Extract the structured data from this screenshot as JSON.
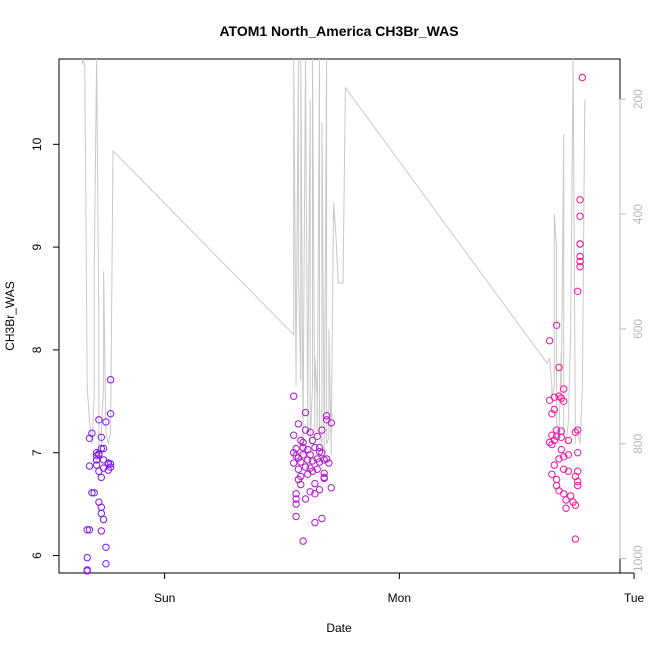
{
  "chart_data": {
    "type": "scatter",
    "title": "ATOM1 North_America CH3Br_WAS",
    "xlabel": "Date",
    "ylabel": "CH3Br_WAS",
    "x_ticks": [
      "Sun",
      "Mon",
      "Tue"
    ],
    "y_ticks": [
      "6",
      "7",
      "8",
      "9",
      "10"
    ],
    "y2_ticks": [
      "200",
      "400",
      "600",
      "800",
      "1000"
    ],
    "ylim": [
      5.83,
      10.83
    ],
    "y2lim": [
      1025,
      130
    ],
    "xlim": [
      -0.45,
      1.94
    ],
    "y2_reversed": true,
    "grid": false,
    "colors": {
      "start": "#7a17f2",
      "end": "#f2149f",
      "line": "#c8c8c8",
      "axis": "#000000",
      "right_axis": "#b8b8b8"
    },
    "points": [
      {
        "x": -0.33,
        "y": 5.98
      },
      {
        "x": -0.33,
        "y": 5.86
      },
      {
        "x": -0.33,
        "y": 5.85
      },
      {
        "x": -0.33,
        "y": 6.25
      },
      {
        "x": -0.32,
        "y": 6.25
      },
      {
        "x": -0.32,
        "y": 6.87
      },
      {
        "x": -0.32,
        "y": 7.14
      },
      {
        "x": -0.31,
        "y": 7.19
      },
      {
        "x": -0.31,
        "y": 6.61
      },
      {
        "x": -0.3,
        "y": 6.61
      },
      {
        "x": -0.29,
        "y": 6.97
      },
      {
        "x": -0.29,
        "y": 6.93
      },
      {
        "x": -0.29,
        "y": 6.88
      },
      {
        "x": -0.29,
        "y": 7.0
      },
      {
        "x": -0.28,
        "y": 6.99
      },
      {
        "x": -0.28,
        "y": 7.32
      },
      {
        "x": -0.28,
        "y": 6.52
      },
      {
        "x": -0.28,
        "y": 6.82
      },
      {
        "x": -0.28,
        "y": 6.98
      },
      {
        "x": -0.27,
        "y": 7.04
      },
      {
        "x": -0.27,
        "y": 6.47
      },
      {
        "x": -0.27,
        "y": 6.41
      },
      {
        "x": -0.27,
        "y": 6.24
      },
      {
        "x": -0.27,
        "y": 7.15
      },
      {
        "x": -0.27,
        "y": 6.76
      },
      {
        "x": -0.26,
        "y": 6.35
      },
      {
        "x": -0.26,
        "y": 6.93
      },
      {
        "x": -0.26,
        "y": 6.85
      },
      {
        "x": -0.26,
        "y": 7.04
      },
      {
        "x": -0.25,
        "y": 7.3
      },
      {
        "x": -0.25,
        "y": 5.92
      },
      {
        "x": -0.25,
        "y": 6.08
      },
      {
        "x": -0.24,
        "y": 6.89
      },
      {
        "x": -0.24,
        "y": 6.9
      },
      {
        "x": -0.24,
        "y": 6.83
      },
      {
        "x": -0.23,
        "y": 6.86
      },
      {
        "x": -0.23,
        "y": 7.71
      },
      {
        "x": -0.23,
        "y": 7.38
      },
      {
        "x": -0.23,
        "y": 6.89
      },
      {
        "x": 0.55,
        "y": 7.55
      },
      {
        "x": 0.55,
        "y": 7.17
      },
      {
        "x": 0.55,
        "y": 7.0
      },
      {
        "x": 0.55,
        "y": 6.9
      },
      {
        "x": 0.56,
        "y": 6.97
      },
      {
        "x": 0.56,
        "y": 7.04
      },
      {
        "x": 0.56,
        "y": 6.6
      },
      {
        "x": 0.56,
        "y": 6.55
      },
      {
        "x": 0.56,
        "y": 6.38
      },
      {
        "x": 0.56,
        "y": 6.5
      },
      {
        "x": 0.57,
        "y": 6.74
      },
      {
        "x": 0.57,
        "y": 6.84
      },
      {
        "x": 0.57,
        "y": 6.95
      },
      {
        "x": 0.57,
        "y": 7.28
      },
      {
        "x": 0.58,
        "y": 7.12
      },
      {
        "x": 0.58,
        "y": 6.91
      },
      {
        "x": 0.58,
        "y": 6.69
      },
      {
        "x": 0.58,
        "y": 6.77
      },
      {
        "x": 0.59,
        "y": 7.1
      },
      {
        "x": 0.59,
        "y": 7.05
      },
      {
        "x": 0.59,
        "y": 6.98
      },
      {
        "x": 0.59,
        "y": 6.14
      },
      {
        "x": 0.6,
        "y": 7.39
      },
      {
        "x": 0.6,
        "y": 7.22
      },
      {
        "x": 0.6,
        "y": 6.86
      },
      {
        "x": 0.6,
        "y": 6.55
      },
      {
        "x": 0.61,
        "y": 7.03
      },
      {
        "x": 0.61,
        "y": 6.93
      },
      {
        "x": 0.61,
        "y": 6.79
      },
      {
        "x": 0.62,
        "y": 7.2
      },
      {
        "x": 0.62,
        "y": 6.98
      },
      {
        "x": 0.62,
        "y": 6.85
      },
      {
        "x": 0.62,
        "y": 6.62
      },
      {
        "x": 0.63,
        "y": 7.12
      },
      {
        "x": 0.63,
        "y": 6.92
      },
      {
        "x": 0.63,
        "y": 6.82
      },
      {
        "x": 0.64,
        "y": 7.05
      },
      {
        "x": 0.64,
        "y": 6.7
      },
      {
        "x": 0.64,
        "y": 6.6
      },
      {
        "x": 0.64,
        "y": 6.32
      },
      {
        "x": 0.65,
        "y": 7.16
      },
      {
        "x": 0.65,
        "y": 6.94
      },
      {
        "x": 0.65,
        "y": 6.84
      },
      {
        "x": 0.66,
        "y": 7.05
      },
      {
        "x": 0.66,
        "y": 6.91
      },
      {
        "x": 0.66,
        "y": 7.01
      },
      {
        "x": 0.66,
        "y": 6.64
      },
      {
        "x": 0.67,
        "y": 6.36
      },
      {
        "x": 0.67,
        "y": 7.22
      },
      {
        "x": 0.67,
        "y": 7.0
      },
      {
        "x": 0.68,
        "y": 6.93
      },
      {
        "x": 0.68,
        "y": 6.76
      },
      {
        "x": 0.68,
        "y": 6.75
      },
      {
        "x": 0.68,
        "y": 6.8
      },
      {
        "x": 0.69,
        "y": 7.36
      },
      {
        "x": 0.69,
        "y": 7.32
      },
      {
        "x": 0.69,
        "y": 6.94
      },
      {
        "x": 0.7,
        "y": 6.9
      },
      {
        "x": 0.71,
        "y": 7.29
      },
      {
        "x": 0.71,
        "y": 6.66
      },
      {
        "x": 1.64,
        "y": 7.1
      },
      {
        "x": 1.64,
        "y": 8.09
      },
      {
        "x": 1.64,
        "y": 7.51
      },
      {
        "x": 1.65,
        "y": 7.38
      },
      {
        "x": 1.65,
        "y": 7.17
      },
      {
        "x": 1.65,
        "y": 7.08
      },
      {
        "x": 1.65,
        "y": 6.79
      },
      {
        "x": 1.66,
        "y": 7.54
      },
      {
        "x": 1.66,
        "y": 7.42
      },
      {
        "x": 1.66,
        "y": 7.12
      },
      {
        "x": 1.66,
        "y": 6.88
      },
      {
        "x": 1.67,
        "y": 8.24
      },
      {
        "x": 1.67,
        "y": 7.22
      },
      {
        "x": 1.67,
        "y": 7.16
      },
      {
        "x": 1.67,
        "y": 6.68
      },
      {
        "x": 1.67,
        "y": 6.74
      },
      {
        "x": 1.68,
        "y": 7.83
      },
      {
        "x": 1.68,
        "y": 7.55
      },
      {
        "x": 1.68,
        "y": 6.94
      },
      {
        "x": 1.68,
        "y": 6.63
      },
      {
        "x": 1.69,
        "y": 7.53
      },
      {
        "x": 1.69,
        "y": 7.21
      },
      {
        "x": 1.69,
        "y": 7.15
      },
      {
        "x": 1.69,
        "y": 7.03
      },
      {
        "x": 1.7,
        "y": 7.5
      },
      {
        "x": 1.7,
        "y": 7.62
      },
      {
        "x": 1.7,
        "y": 6.96
      },
      {
        "x": 1.7,
        "y": 6.84
      },
      {
        "x": 1.7,
        "y": 6.6
      },
      {
        "x": 1.71,
        "y": 6.46
      },
      {
        "x": 1.71,
        "y": 6.54
      },
      {
        "x": 1.72,
        "y": 6.98
      },
      {
        "x": 1.72,
        "y": 6.82
      },
      {
        "x": 1.72,
        "y": 7.12
      },
      {
        "x": 1.73,
        "y": 6.58
      },
      {
        "x": 1.74,
        "y": 6.52
      },
      {
        "x": 1.75,
        "y": 6.16
      },
      {
        "x": 1.75,
        "y": 6.49
      },
      {
        "x": 1.75,
        "y": 7.2
      },
      {
        "x": 1.75,
        "y": 6.77
      },
      {
        "x": 1.76,
        "y": 6.72
      },
      {
        "x": 1.76,
        "y": 6.82
      },
      {
        "x": 1.76,
        "y": 6.68
      },
      {
        "x": 1.76,
        "y": 7.0
      },
      {
        "x": 1.76,
        "y": 8.57
      },
      {
        "x": 1.76,
        "y": 7.22
      },
      {
        "x": 1.77,
        "y": 8.86
      },
      {
        "x": 1.77,
        "y": 9.03
      },
      {
        "x": 1.77,
        "y": 9.03
      },
      {
        "x": 1.77,
        "y": 9.3
      },
      {
        "x": 1.77,
        "y": 8.91
      },
      {
        "x": 1.77,
        "y": 9.46
      },
      {
        "x": 1.77,
        "y": 8.81
      },
      {
        "x": 1.78,
        "y": 10.65
      }
    ],
    "altitude_line": {
      "x": [
        -0.35,
        -0.35,
        -0.34,
        -0.33,
        -0.32,
        -0.31,
        -0.3,
        -0.3,
        -0.29,
        -0.29,
        -0.28,
        -0.28,
        -0.27,
        -0.27,
        -0.26,
        -0.26,
        -0.25,
        -0.24,
        -0.23,
        -0.22,
        0.55,
        0.55,
        0.56,
        0.56,
        0.57,
        0.57,
        0.58,
        0.58,
        0.59,
        0.59,
        0.6,
        0.61,
        0.61,
        0.62,
        0.62,
        0.63,
        0.63,
        0.64,
        0.64,
        0.65,
        0.65,
        0.66,
        0.66,
        0.67,
        0.67,
        0.68,
        0.68,
        0.69,
        0.69,
        0.7,
        0.7,
        0.71,
        0.71,
        0.72,
        0.73,
        0.74,
        0.76,
        0.77,
        1.63,
        1.64,
        1.65,
        1.65,
        1.66,
        1.66,
        1.67,
        1.67,
        1.68,
        1.68,
        1.69,
        1.69,
        1.7,
        1.7,
        1.71,
        1.72,
        1.73,
        1.74,
        1.75,
        1.75,
        1.76,
        1.77,
        1.78,
        1.79
      ],
      "alt": [
        140,
        130,
        140,
        700,
        760,
        800,
        720,
        500,
        130,
        130,
        600,
        820,
        800,
        780,
        700,
        500,
        780,
        800,
        780,
        290,
        610,
        130,
        700,
        660,
        130,
        500,
        690,
        130,
        820,
        760,
        130,
        780,
        700,
        200,
        800,
        700,
        130,
        780,
        650,
        720,
        780,
        130,
        780,
        800,
        240,
        780,
        820,
        130,
        800,
        790,
        600,
        820,
        780,
        380,
        440,
        520,
        520,
        180,
        660,
        650,
        700,
        720,
        700,
        400,
        460,
        760,
        800,
        780,
        640,
        700,
        260,
        780,
        800,
        760,
        600,
        130,
        800,
        780,
        780,
        800,
        700,
        200
      ]
    }
  }
}
